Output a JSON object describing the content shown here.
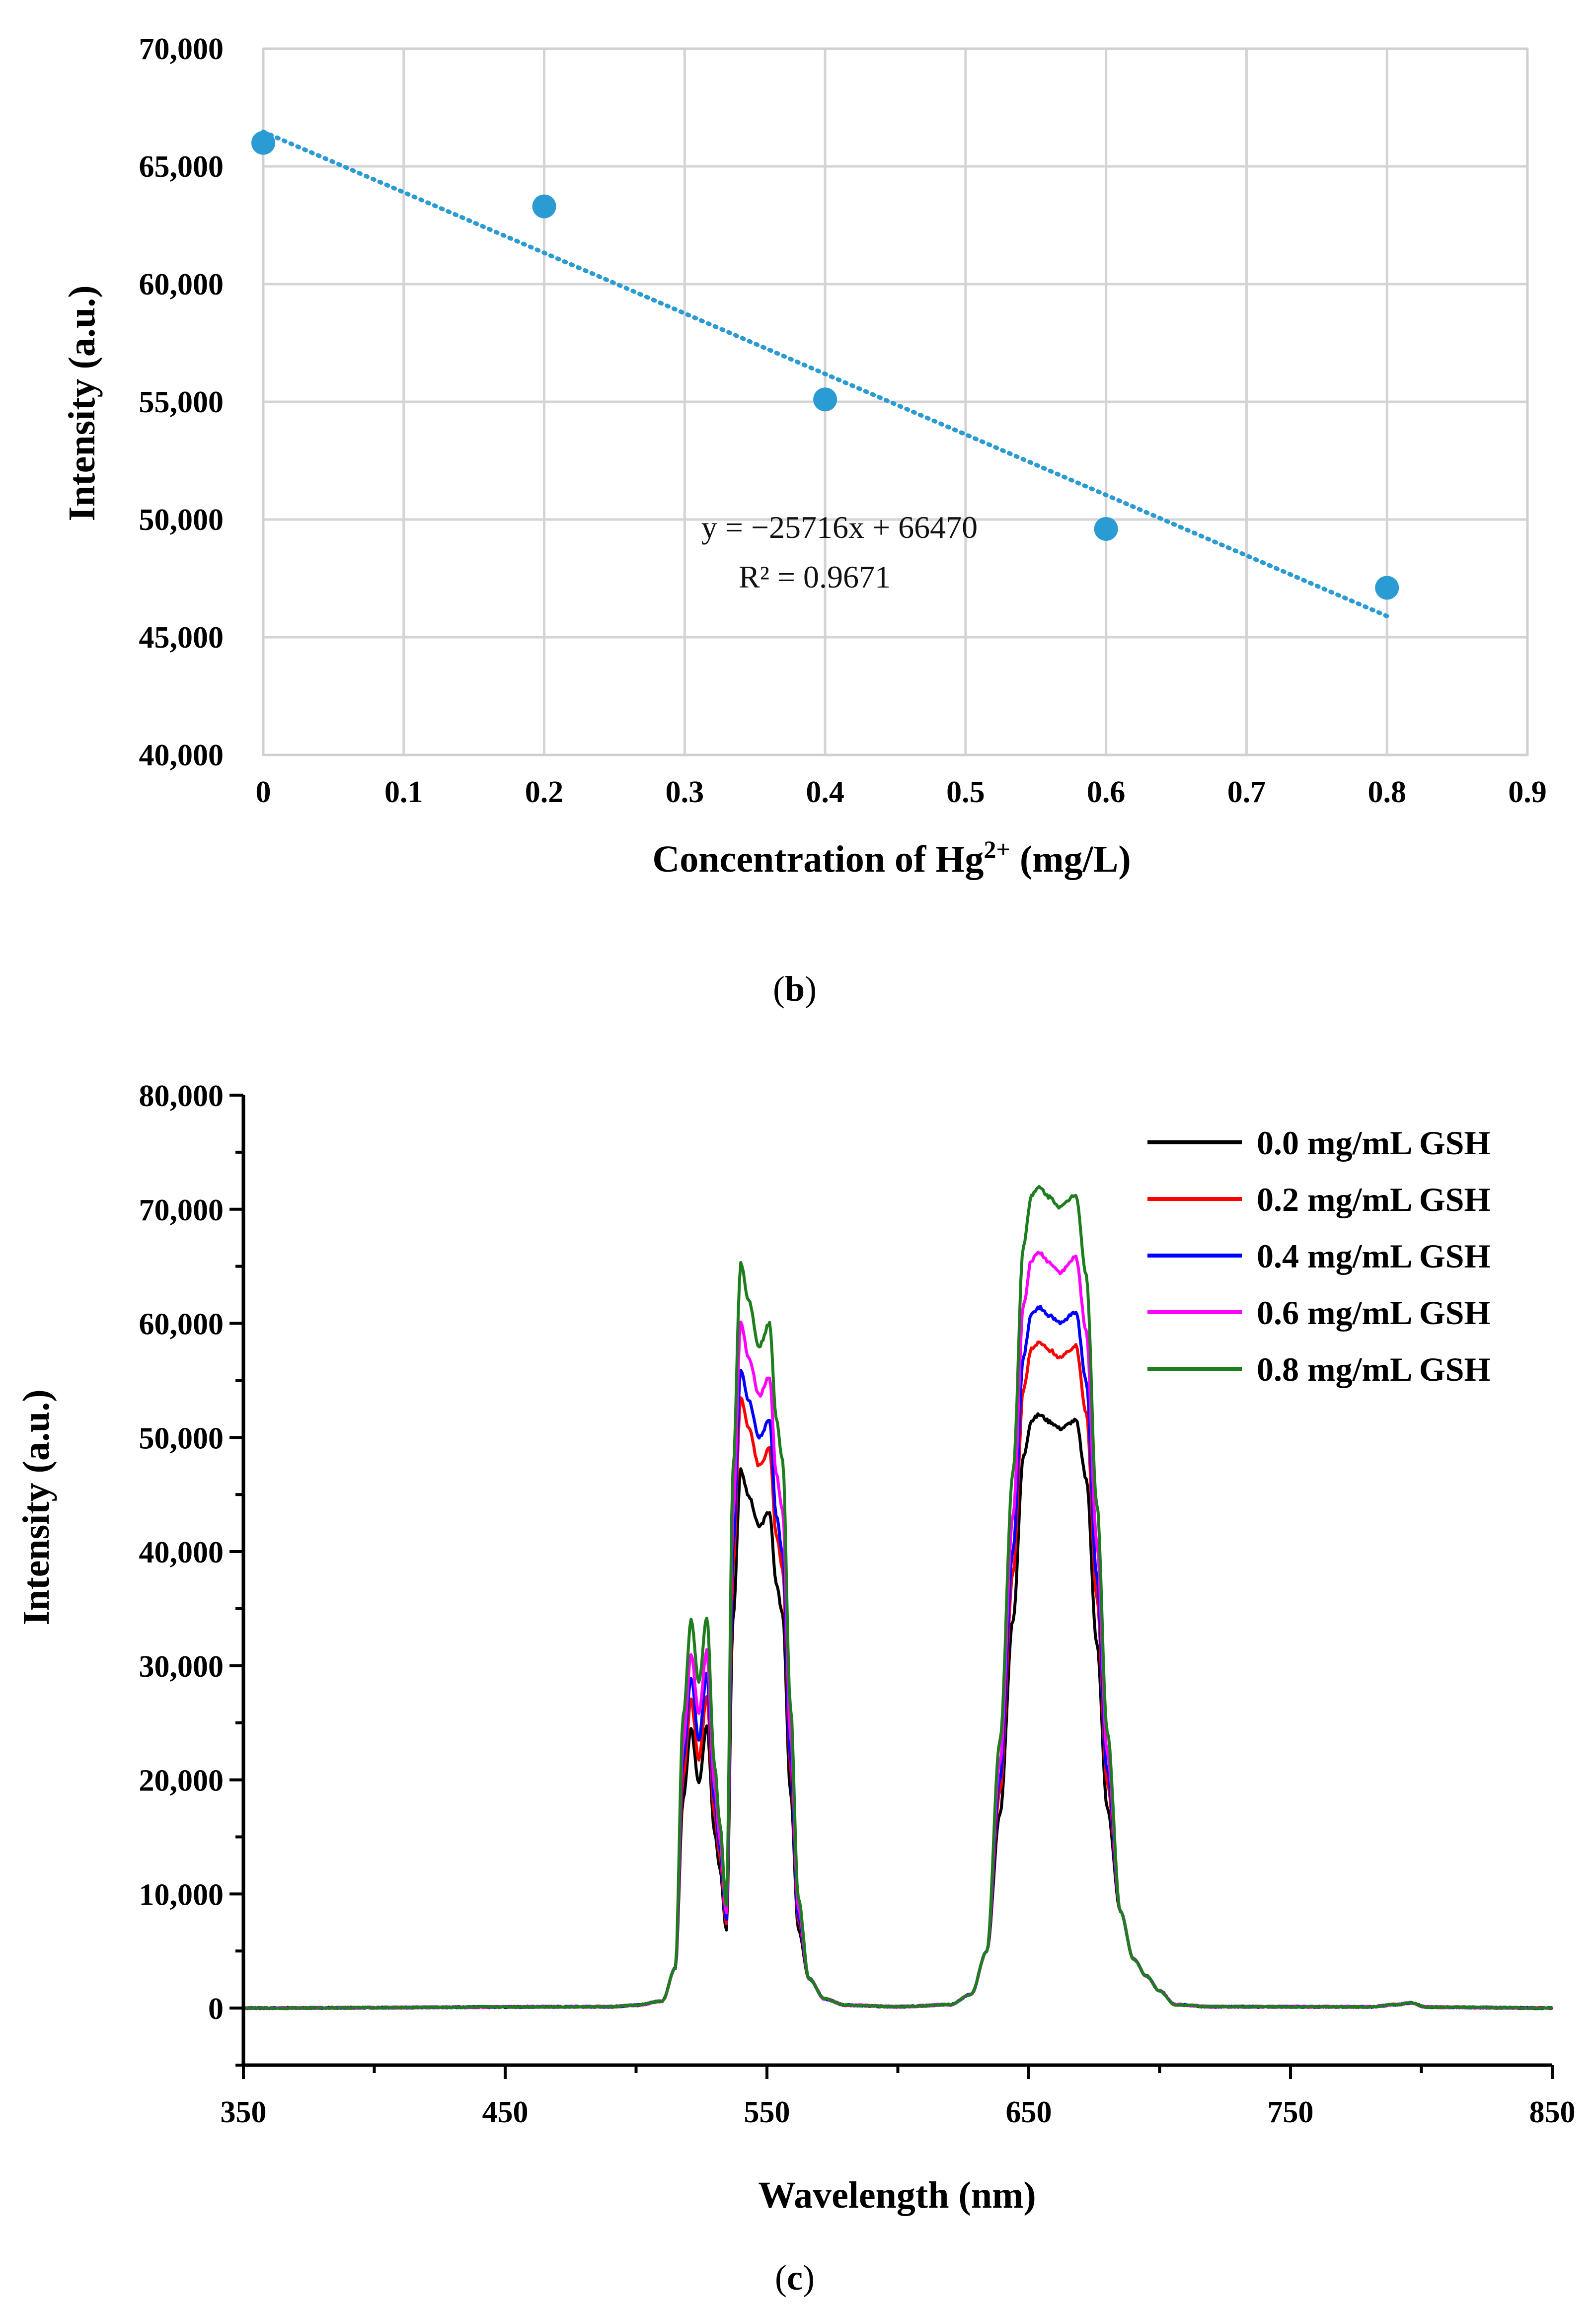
{
  "chart_data": [
    {
      "type": "scatter",
      "panel": "b",
      "caption_letter": "b",
      "xlabel_main": "Concentration of Hg",
      "xlabel_sup": "2+",
      "xlabel_tail": " (mg/L)",
      "ylabel": "Intensity (a.u.)",
      "xlim": [
        0,
        0.9
      ],
      "ylim": [
        40000,
        70000
      ],
      "xticks": [
        0,
        0.1,
        0.2,
        0.3,
        0.4,
        0.5,
        0.6,
        0.7,
        0.8,
        0.9
      ],
      "xtick_labels": [
        "0",
        "0.1",
        "0.2",
        "0.3",
        "0.4",
        "0.5",
        "0.6",
        "0.7",
        "0.8",
        "0.9"
      ],
      "yticks": [
        40000,
        45000,
        50000,
        55000,
        60000,
        65000,
        70000
      ],
      "ytick_labels": [
        "40,000",
        "45,000",
        "50,000",
        "55,000",
        "60,000",
        "65,000",
        "70,000"
      ],
      "grid": true,
      "marker_color": "#2b9bd4",
      "points": [
        {
          "x": 0,
          "y": 66000
        },
        {
          "x": 0.2,
          "y": 63300
        },
        {
          "x": 0.4,
          "y": 55100
        },
        {
          "x": 0.6,
          "y": 49600
        },
        {
          "x": 0.8,
          "y": 47100
        }
      ],
      "trendline": {
        "slope": -25716,
        "intercept": 66470,
        "x_range": [
          0,
          0.8
        ],
        "style": "dotted",
        "color": "#2b9bd4"
      },
      "equation_text": "y = −25716x + 66470",
      "r2_text": "R² = 0.9671"
    },
    {
      "type": "line",
      "panel": "c",
      "caption_letter": "c",
      "xlabel": "Wavelength (nm)",
      "ylabel": "Intensity (a.u.)",
      "xlim": [
        350,
        850
      ],
      "ylim": [
        -5000,
        80000
      ],
      "xticks": [
        350,
        450,
        550,
        650,
        750,
        850
      ],
      "xtick_labels": [
        "350",
        "450",
        "550",
        "650",
        "750",
        "850"
      ],
      "yticks": [
        0,
        10000,
        20000,
        30000,
        40000,
        50000,
        60000,
        70000,
        80000
      ],
      "ytick_labels": [
        "0",
        "10,000",
        "20,000",
        "30,000",
        "40,000",
        "50,000",
        "60,000",
        "70,000",
        "80,000"
      ],
      "grid": false,
      "legend_position": "top-right",
      "series": [
        {
          "name": "0.0 mg/mL GSH",
          "color": "#000000",
          "peaks": {
            "p521": 24500,
            "dip524": 19800,
            "p527": 24800,
            "dip535": 6800,
            "p540": 47200,
            "dip547": 42200,
            "p551": 43500,
            "p556": 34500,
            "p654": 52000,
            "dip662": 50800,
            "p668": 51500
          }
        },
        {
          "name": "0.2 mg/mL GSH",
          "color": "#ff0000",
          "peaks": {
            "p521": 27000,
            "dip524": 21800,
            "p527": 27300,
            "dip535": 7400,
            "p540": 53500,
            "dip547": 47500,
            "p551": 49000,
            "p556": 38500,
            "p654": 58300,
            "dip662": 57000,
            "p668": 58000
          }
        },
        {
          "name": "0.4 mg/mL GSH",
          "color": "#0000ff",
          "peaks": {
            "p521": 29000,
            "dip524": 23500,
            "p527": 29300,
            "dip535": 7800,
            "p540": 56000,
            "dip547": 50000,
            "p551": 51500,
            "p556": 40000,
            "p654": 61400,
            "dip662": 60000,
            "p668": 61000
          }
        },
        {
          "name": "0.6 mg/mL GSH",
          "color": "#ff00ff",
          "peaks": {
            "p521": 31000,
            "dip524": 25800,
            "p527": 31300,
            "dip535": 8300,
            "p540": 60000,
            "dip547": 53700,
            "p551": 55300,
            "p556": 43500,
            "p654": 66200,
            "dip662": 64500,
            "p668": 65800
          }
        },
        {
          "name": "0.8 mg/mL GSH",
          "color": "#1e7d1e",
          "peaks": {
            "p521": 34000,
            "dip524": 28500,
            "p527": 34300,
            "dip535": 9000,
            "p540": 65300,
            "dip547": 58000,
            "p551": 60000,
            "p556": 48000,
            "p654": 71900,
            "dip662": 70200,
            "p668": 71300
          }
        }
      ]
    }
  ]
}
